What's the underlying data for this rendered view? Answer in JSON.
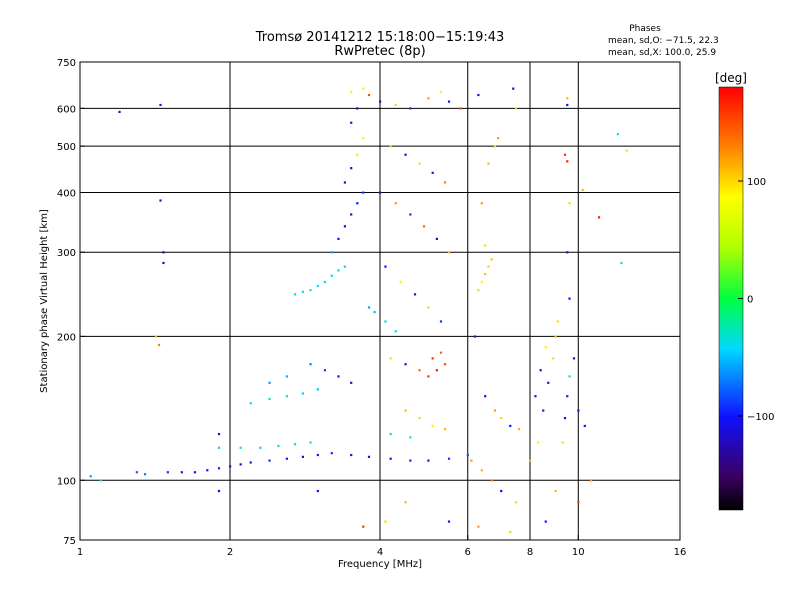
{
  "title_line1": "Tromsø 20141212 15:18:00−15:19:43",
  "title_line2": "RwPretec (8p)",
  "stats": {
    "heading": "Phases",
    "line_o": "mean, sd,O: −71.5, 22.3",
    "line_x": "mean, sd,X: 100.0, 25.9"
  },
  "colorbar": {
    "unit_label": "[deg]",
    "range": [
      -180,
      180
    ],
    "ticks": [
      {
        "value": 100,
        "label": "100"
      },
      {
        "value": 0,
        "label": "0"
      },
      {
        "value": -100,
        "label": "−100"
      }
    ],
    "colormap": "dark-purple -> blue -> cyan -> green -> yellow -> orange -> red"
  },
  "chart_data": {
    "type": "scatter",
    "title": "Tromsø 20141212 15:18:00−15:19:43 RwPretec (8p)",
    "xlabel": "Frequency [MHz]",
    "ylabel": "Stationary phase Virtual Height [km]",
    "x_scale": "log",
    "y_scale": "log",
    "xlim": [
      1,
      16
    ],
    "ylim": [
      75,
      750
    ],
    "x_ticks": [
      {
        "value": 1,
        "label": "1"
      },
      {
        "value": 2,
        "label": "2"
      },
      {
        "value": 4,
        "label": "4"
      },
      {
        "value": 6,
        "label": "6"
      },
      {
        "value": 8,
        "label": "8"
      },
      {
        "value": 10,
        "label": "10"
      },
      {
        "value": 16,
        "label": "16"
      }
    ],
    "y_ticks": [
      {
        "value": 75,
        "label": "75"
      },
      {
        "value": 100,
        "label": "100"
      },
      {
        "value": 200,
        "label": "200"
      },
      {
        "value": 300,
        "label": "300"
      },
      {
        "value": 400,
        "label": "400"
      },
      {
        "value": 500,
        "label": "500"
      },
      {
        "value": 600,
        "label": "600"
      },
      {
        "value": 750,
        "label": "750"
      }
    ],
    "x_gridlines": [
      2,
      4,
      6,
      8,
      10
    ],
    "y_gridlines": [
      100,
      200,
      300,
      400,
      500,
      600
    ],
    "grid": true,
    "points": [
      {
        "x": 1.05,
        "y": 102,
        "phase": -60
      },
      {
        "x": 1.1,
        "y": 100,
        "phase": -40
      },
      {
        "x": 1.2,
        "y": 590,
        "phase": -120
      },
      {
        "x": 1.45,
        "y": 610,
        "phase": -100
      },
      {
        "x": 1.45,
        "y": 385,
        "phase": -110
      },
      {
        "x": 1.47,
        "y": 300,
        "phase": -130
      },
      {
        "x": 1.47,
        "y": 285,
        "phase": -125
      },
      {
        "x": 1.42,
        "y": 200,
        "phase": 110
      },
      {
        "x": 1.44,
        "y": 192,
        "phase": 130
      },
      {
        "x": 1.9,
        "y": 95,
        "phase": -110
      },
      {
        "x": 1.9,
        "y": 125,
        "phase": -120
      },
      {
        "x": 1.3,
        "y": 104,
        "phase": -80
      },
      {
        "x": 1.35,
        "y": 103,
        "phase": -70
      },
      {
        "x": 1.5,
        "y": 104,
        "phase": -90
      },
      {
        "x": 1.6,
        "y": 104,
        "phase": -100
      },
      {
        "x": 1.7,
        "y": 104,
        "phase": -105
      },
      {
        "x": 1.8,
        "y": 105,
        "phase": -100
      },
      {
        "x": 1.9,
        "y": 106,
        "phase": -95
      },
      {
        "x": 2.0,
        "y": 107,
        "phase": -100
      },
      {
        "x": 2.1,
        "y": 108,
        "phase": -105
      },
      {
        "x": 2.2,
        "y": 109,
        "phase": -100
      },
      {
        "x": 2.4,
        "y": 110,
        "phase": -95
      },
      {
        "x": 2.6,
        "y": 111,
        "phase": -100
      },
      {
        "x": 2.8,
        "y": 112,
        "phase": -110
      },
      {
        "x": 3.0,
        "y": 113,
        "phase": -100
      },
      {
        "x": 3.2,
        "y": 114,
        "phase": -95
      },
      {
        "x": 3.5,
        "y": 113,
        "phase": -100
      },
      {
        "x": 3.8,
        "y": 112,
        "phase": -105
      },
      {
        "x": 4.2,
        "y": 111,
        "phase": -100
      },
      {
        "x": 4.6,
        "y": 110,
        "phase": -95
      },
      {
        "x": 5.0,
        "y": 110,
        "phase": -100
      },
      {
        "x": 5.5,
        "y": 111,
        "phase": -90
      },
      {
        "x": 6.0,
        "y": 113,
        "phase": -80
      },
      {
        "x": 1.9,
        "y": 117,
        "phase": -40
      },
      {
        "x": 2.1,
        "y": 117,
        "phase": -30
      },
      {
        "x": 2.3,
        "y": 117,
        "phase": -40
      },
      {
        "x": 2.5,
        "y": 118,
        "phase": -35
      },
      {
        "x": 2.7,
        "y": 119,
        "phase": -30
      },
      {
        "x": 2.9,
        "y": 120,
        "phase": -40
      },
      {
        "x": 2.2,
        "y": 145,
        "phase": -40
      },
      {
        "x": 2.4,
        "y": 148,
        "phase": -30
      },
      {
        "x": 2.6,
        "y": 150,
        "phase": -35
      },
      {
        "x": 2.8,
        "y": 152,
        "phase": -45
      },
      {
        "x": 3.0,
        "y": 155,
        "phase": -50
      },
      {
        "x": 2.4,
        "y": 160,
        "phase": -60
      },
      {
        "x": 2.6,
        "y": 165,
        "phase": -55
      },
      {
        "x": 2.9,
        "y": 175,
        "phase": -70
      },
      {
        "x": 3.1,
        "y": 170,
        "phase": -90
      },
      {
        "x": 3.3,
        "y": 165,
        "phase": -100
      },
      {
        "x": 3.5,
        "y": 160,
        "phase": -110
      },
      {
        "x": 2.7,
        "y": 245,
        "phase": -30
      },
      {
        "x": 2.8,
        "y": 248,
        "phase": -40
      },
      {
        "x": 2.9,
        "y": 250,
        "phase": -35
      },
      {
        "x": 3.0,
        "y": 255,
        "phase": -40
      },
      {
        "x": 3.1,
        "y": 260,
        "phase": -45
      },
      {
        "x": 3.2,
        "y": 268,
        "phase": -30
      },
      {
        "x": 3.3,
        "y": 275,
        "phase": -35
      },
      {
        "x": 3.4,
        "y": 280,
        "phase": -40
      },
      {
        "x": 3.2,
        "y": 300,
        "phase": -60
      },
      {
        "x": 3.3,
        "y": 320,
        "phase": -100
      },
      {
        "x": 3.4,
        "y": 340,
        "phase": -110
      },
      {
        "x": 3.5,
        "y": 360,
        "phase": -105
      },
      {
        "x": 3.6,
        "y": 380,
        "phase": -100
      },
      {
        "x": 3.7,
        "y": 400,
        "phase": -90
      },
      {
        "x": 3.4,
        "y": 420,
        "phase": -110
      },
      {
        "x": 3.5,
        "y": 450,
        "phase": -105
      },
      {
        "x": 3.6,
        "y": 480,
        "phase": 60
      },
      {
        "x": 3.7,
        "y": 520,
        "phase": 80
      },
      {
        "x": 3.5,
        "y": 560,
        "phase": -100
      },
      {
        "x": 3.6,
        "y": 600,
        "phase": -120
      },
      {
        "x": 3.5,
        "y": 650,
        "phase": 70
      },
      {
        "x": 3.7,
        "y": 660,
        "phase": 90
      },
      {
        "x": 3.8,
        "y": 640,
        "phase": 150
      },
      {
        "x": 4.0,
        "y": 620,
        "phase": -110
      },
      {
        "x": 4.3,
        "y": 610,
        "phase": 100
      },
      {
        "x": 4.6,
        "y": 600,
        "phase": -90
      },
      {
        "x": 5.0,
        "y": 630,
        "phase": 120
      },
      {
        "x": 5.3,
        "y": 650,
        "phase": 90
      },
      {
        "x": 5.5,
        "y": 620,
        "phase": -100
      },
      {
        "x": 5.8,
        "y": 600,
        "phase": 150
      },
      {
        "x": 4.2,
        "y": 500,
        "phase": 40
      },
      {
        "x": 4.5,
        "y": 480,
        "phase": -110
      },
      {
        "x": 4.8,
        "y": 460,
        "phase": 100
      },
      {
        "x": 5.1,
        "y": 440,
        "phase": -100
      },
      {
        "x": 5.4,
        "y": 420,
        "phase": 130
      },
      {
        "x": 4.0,
        "y": 400,
        "phase": -100
      },
      {
        "x": 4.3,
        "y": 380,
        "phase": 120
      },
      {
        "x": 4.6,
        "y": 360,
        "phase": -90
      },
      {
        "x": 4.9,
        "y": 340,
        "phase": 140
      },
      {
        "x": 5.2,
        "y": 320,
        "phase": -110
      },
      {
        "x": 5.5,
        "y": 300,
        "phase": 110
      },
      {
        "x": 4.1,
        "y": 280,
        "phase": -100
      },
      {
        "x": 4.4,
        "y": 260,
        "phase": 90
      },
      {
        "x": 4.7,
        "y": 245,
        "phase": -110
      },
      {
        "x": 5.0,
        "y": 230,
        "phase": 100
      },
      {
        "x": 5.3,
        "y": 215,
        "phase": -90
      },
      {
        "x": 3.8,
        "y": 230,
        "phase": -60
      },
      {
        "x": 3.9,
        "y": 225,
        "phase": -50
      },
      {
        "x": 4.1,
        "y": 215,
        "phase": -40
      },
      {
        "x": 4.3,
        "y": 205,
        "phase": -30
      },
      {
        "x": 4.2,
        "y": 180,
        "phase": 100
      },
      {
        "x": 4.5,
        "y": 175,
        "phase": -110
      },
      {
        "x": 4.8,
        "y": 170,
        "phase": 140
      },
      {
        "x": 5.0,
        "y": 165,
        "phase": 160
      },
      {
        "x": 5.2,
        "y": 170,
        "phase": 170
      },
      {
        "x": 5.4,
        "y": 175,
        "phase": 150
      },
      {
        "x": 5.1,
        "y": 180,
        "phase": 160
      },
      {
        "x": 5.3,
        "y": 185,
        "phase": 140
      },
      {
        "x": 4.5,
        "y": 140,
        "phase": 110
      },
      {
        "x": 4.8,
        "y": 135,
        "phase": 100
      },
      {
        "x": 5.1,
        "y": 130,
        "phase": 90
      },
      {
        "x": 5.4,
        "y": 128,
        "phase": 110
      },
      {
        "x": 4.2,
        "y": 125,
        "phase": -30
      },
      {
        "x": 4.6,
        "y": 123,
        "phase": -35
      },
      {
        "x": 6.3,
        "y": 250,
        "phase": 100
      },
      {
        "x": 6.4,
        "y": 260,
        "phase": 90
      },
      {
        "x": 6.5,
        "y": 270,
        "phase": 110
      },
      {
        "x": 6.6,
        "y": 280,
        "phase": 100
      },
      {
        "x": 6.7,
        "y": 290,
        "phase": 105
      },
      {
        "x": 6.5,
        "y": 310,
        "phase": 100
      },
      {
        "x": 6.4,
        "y": 380,
        "phase": 120
      },
      {
        "x": 6.6,
        "y": 460,
        "phase": 110
      },
      {
        "x": 6.8,
        "y": 500,
        "phase": 100
      },
      {
        "x": 6.3,
        "y": 640,
        "phase": -100
      },
      {
        "x": 6.9,
        "y": 520,
        "phase": 120
      },
      {
        "x": 7.4,
        "y": 660,
        "phase": -110
      },
      {
        "x": 7.5,
        "y": 600,
        "phase": 100
      },
      {
        "x": 6.2,
        "y": 200,
        "phase": -110
      },
      {
        "x": 6.5,
        "y": 150,
        "phase": -100
      },
      {
        "x": 6.8,
        "y": 140,
        "phase": 120
      },
      {
        "x": 7.0,
        "y": 135,
        "phase": 100
      },
      {
        "x": 7.3,
        "y": 130,
        "phase": -100
      },
      {
        "x": 7.6,
        "y": 128,
        "phase": 110
      },
      {
        "x": 6.1,
        "y": 110,
        "phase": 120
      },
      {
        "x": 6.4,
        "y": 105,
        "phase": 110
      },
      {
        "x": 6.7,
        "y": 100,
        "phase": 130
      },
      {
        "x": 7.0,
        "y": 95,
        "phase": -110
      },
      {
        "x": 7.5,
        "y": 90,
        "phase": 100
      },
      {
        "x": 8.0,
        "y": 110,
        "phase": 110
      },
      {
        "x": 8.3,
        "y": 120,
        "phase": 90
      },
      {
        "x": 8.5,
        "y": 140,
        "phase": -100
      },
      {
        "x": 8.7,
        "y": 160,
        "phase": -110
      },
      {
        "x": 8.9,
        "y": 180,
        "phase": 100
      },
      {
        "x": 9.0,
        "y": 200,
        "phase": 110
      },
      {
        "x": 9.1,
        "y": 215,
        "phase": 100
      },
      {
        "x": 8.6,
        "y": 190,
        "phase": 90
      },
      {
        "x": 8.4,
        "y": 170,
        "phase": -110
      },
      {
        "x": 8.2,
        "y": 150,
        "phase": -100
      },
      {
        "x": 9.3,
        "y": 120,
        "phase": 100
      },
      {
        "x": 9.4,
        "y": 135,
        "phase": -110
      },
      {
        "x": 9.5,
        "y": 150,
        "phase": -100
      },
      {
        "x": 9.6,
        "y": 165,
        "phase": -30
      },
      {
        "x": 9.8,
        "y": 180,
        "phase": -110
      },
      {
        "x": 10.0,
        "y": 140,
        "phase": -100
      },
      {
        "x": 10.3,
        "y": 130,
        "phase": -110
      },
      {
        "x": 10.6,
        "y": 100,
        "phase": 120
      },
      {
        "x": 9.5,
        "y": 630,
        "phase": 110
      },
      {
        "x": 9.5,
        "y": 610,
        "phase": -110
      },
      {
        "x": 9.4,
        "y": 480,
        "phase": 160
      },
      {
        "x": 9.5,
        "y": 465,
        "phase": 170
      },
      {
        "x": 9.6,
        "y": 380,
        "phase": 100
      },
      {
        "x": 9.5,
        "y": 300,
        "phase": -110
      },
      {
        "x": 9.6,
        "y": 240,
        "phase": -100
      },
      {
        "x": 10.2,
        "y": 405,
        "phase": 110
      },
      {
        "x": 11.0,
        "y": 355,
        "phase": 170
      },
      {
        "x": 12.0,
        "y": 530,
        "phase": -40
      },
      {
        "x": 12.5,
        "y": 490,
        "phase": 100
      },
      {
        "x": 12.2,
        "y": 285,
        "phase": -30
      },
      {
        "x": 10.0,
        "y": 90,
        "phase": 160
      },
      {
        "x": 9.0,
        "y": 95,
        "phase": 110
      },
      {
        "x": 8.6,
        "y": 82,
        "phase": -100
      },
      {
        "x": 7.3,
        "y": 78,
        "phase": 100
      },
      {
        "x": 6.3,
        "y": 80,
        "phase": 120
      },
      {
        "x": 5.5,
        "y": 82,
        "phase": -110
      },
      {
        "x": 4.1,
        "y": 82,
        "phase": 100
      },
      {
        "x": 3.7,
        "y": 80,
        "phase": 160
      },
      {
        "x": 4.5,
        "y": 90,
        "phase": 110
      },
      {
        "x": 3.0,
        "y": 95,
        "phase": -110
      }
    ]
  }
}
